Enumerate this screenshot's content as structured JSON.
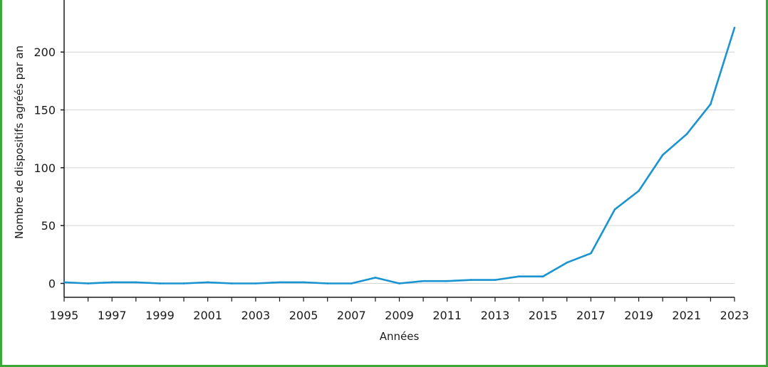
{
  "chart_data": {
    "type": "line",
    "xlabel": "Années",
    "ylabel": "Nombre de dispositifs agréés par an",
    "xlim": [
      1995,
      2023
    ],
    "ylim": [
      -12,
      245
    ],
    "x_ticks": [
      1995,
      1997,
      1999,
      2001,
      2003,
      2005,
      2007,
      2009,
      2011,
      2013,
      2015,
      2017,
      2019,
      2021,
      2023
    ],
    "y_ticks": [
      0,
      50,
      100,
      150,
      200
    ],
    "grid": "horizontal",
    "legend": "none",
    "series": [
      {
        "color": "#1a93d1",
        "x": [
          1995,
          1996,
          1997,
          1998,
          1999,
          2000,
          2001,
          2002,
          2003,
          2004,
          2005,
          2006,
          2007,
          2008,
          2009,
          2010,
          2011,
          2012,
          2013,
          2014,
          2015,
          2016,
          2017,
          2018,
          2019,
          2020,
          2021,
          2022,
          2023
        ],
        "y": [
          1,
          0,
          1,
          1,
          0,
          0,
          1,
          0,
          0,
          1,
          1,
          0,
          0,
          5,
          0,
          2,
          2,
          3,
          3,
          6,
          6,
          18,
          26,
          64,
          80,
          111,
          129,
          155,
          221
        ]
      }
    ]
  },
  "colors": {
    "line": "#1a93d1",
    "grid": "#d4d4d4",
    "axis": "#1a1a1a",
    "frame": "#3aa935"
  }
}
